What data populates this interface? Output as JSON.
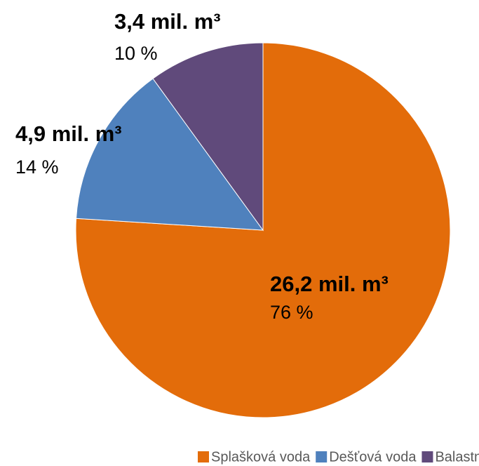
{
  "chart_data": {
    "type": "pie",
    "categories": [
      "Splašková voda",
      "Dešťová voda",
      "Balastní vody"
    ],
    "values": [
      76,
      14,
      10
    ],
    "value_labels": [
      "76 %",
      "14 %",
      "10 %"
    ],
    "volume_labels": [
      "26,2 mil. m³",
      "4,9 mil. m³",
      "3,4 mil. m³"
    ],
    "colors": [
      "#E36C0A",
      "#4F81BD",
      "#604A7B"
    ],
    "legend": "bottom"
  }
}
